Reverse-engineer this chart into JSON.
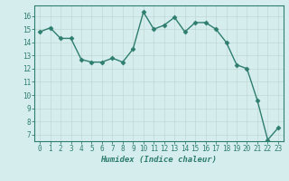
{
  "x": [
    0,
    1,
    2,
    3,
    4,
    5,
    6,
    7,
    8,
    9,
    10,
    11,
    12,
    13,
    14,
    15,
    16,
    17,
    18,
    19,
    20,
    21,
    22,
    23
  ],
  "y": [
    14.8,
    15.1,
    14.3,
    14.3,
    12.7,
    12.5,
    12.5,
    12.8,
    12.5,
    13.5,
    16.3,
    15.0,
    15.3,
    15.9,
    14.8,
    15.5,
    15.5,
    15.0,
    14.0,
    12.3,
    12.0,
    9.6,
    6.6,
    7.5
  ],
  "line_color": "#2e7d6e",
  "marker": "D",
  "markersize": 2.5,
  "linewidth": 1.0,
  "xlabel": "Humidex (Indice chaleur)",
  "xlim": [
    -0.5,
    23.5
  ],
  "ylim": [
    6.5,
    16.8
  ],
  "yticks": [
    7,
    8,
    9,
    10,
    11,
    12,
    13,
    14,
    15,
    16
  ],
  "xticks": [
    0,
    1,
    2,
    3,
    4,
    5,
    6,
    7,
    8,
    9,
    10,
    11,
    12,
    13,
    14,
    15,
    16,
    17,
    18,
    19,
    20,
    21,
    22,
    23
  ],
  "xtick_labels": [
    "0",
    "1",
    "2",
    "3",
    "4",
    "5",
    "6",
    "7",
    "8",
    "9",
    "10",
    "11",
    "12",
    "13",
    "14",
    "15",
    "16",
    "17",
    "18",
    "19",
    "20",
    "21",
    "22",
    "23"
  ],
  "bg_color": "#d5eeed",
  "grid_color": "#c0d8d5",
  "tick_color": "#2e7d6e",
  "label_fontsize": 6.5,
  "tick_fontsize": 5.5
}
